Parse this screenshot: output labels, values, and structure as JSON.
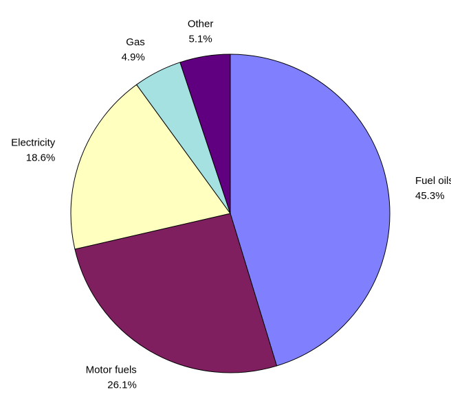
{
  "chart_data": {
    "type": "pie",
    "title": "",
    "start_angle_deg": 0,
    "direction": "clockwise",
    "legend": "none",
    "slices": [
      {
        "label": "Fuel oils",
        "value": 45.3,
        "display": "45.3%",
        "color": "#8080ff"
      },
      {
        "label": "Motor fuels",
        "value": 26.1,
        "display": "26.1%",
        "color": "#7f1f5f"
      },
      {
        "label": "Electricity",
        "value": 18.6,
        "display": "18.6%",
        "color": "#ffffc0"
      },
      {
        "label": "Gas",
        "value": 4.9,
        "display": "4.9%",
        "color": "#a6e1e1"
      },
      {
        "label": "Other",
        "value": 5.1,
        "display": "5.1%",
        "color": "#600080"
      }
    ]
  }
}
